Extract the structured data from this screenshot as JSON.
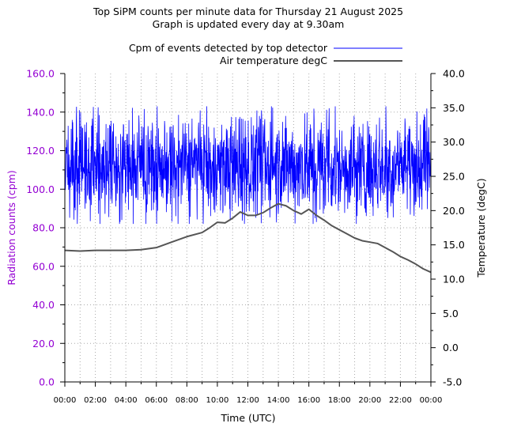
{
  "chart_data": {
    "type": "line",
    "title": "Top SiPM counts per minute data for Thursday 21 August 2025",
    "subtitle": "Graph is updated every day at 9.30am",
    "xlabel": "Time (UTC)",
    "ylabel_left": "Radiation counts (cpm)",
    "ylabel_right": "Temperature (degC)",
    "x_ticks": [
      "00:00",
      "02:00",
      "04:00",
      "06:00",
      "08:00",
      "10:00",
      "12:00",
      "14:00",
      "16:00",
      "18:00",
      "20:00",
      "22:00",
      "00:00"
    ],
    "x_range_hours": [
      0,
      24
    ],
    "y_left_range": [
      0,
      160
    ],
    "y_left_ticks": [
      "0.0",
      "20.0",
      "40.0",
      "60.0",
      "80.0",
      "100.0",
      "120.0",
      "140.0",
      "160.0"
    ],
    "y_right_range": [
      -5,
      40
    ],
    "y_right_ticks": [
      "-5.0",
      "0.0",
      "5.0",
      "10.0",
      "15.0",
      "20.0",
      "25.0",
      "30.0",
      "35.0",
      "40.0"
    ],
    "grid": true,
    "legend_position": "top-center",
    "series": [
      {
        "name": "Cpm of events detected by top detector",
        "axis": "left",
        "color": "#0000ff",
        "kind": "noisy-minute-counts",
        "mean": 112,
        "min": 82,
        "max": 143,
        "samples_per_day": 1440
      },
      {
        "name": "Air temperature degC",
        "axis": "right",
        "color": "#555555",
        "hours": [
          0,
          1,
          2,
          3,
          4,
          5,
          6,
          7,
          8,
          9,
          9.5,
          10,
          10.5,
          11,
          11.5,
          12,
          12.5,
          13,
          13.5,
          14,
          14.5,
          15,
          15.5,
          16,
          16.5,
          17,
          17.5,
          18,
          18.5,
          19,
          19.5,
          20,
          20.5,
          21,
          21.5,
          22,
          22.5,
          23,
          23.5,
          24
        ],
        "values": [
          14.2,
          14.1,
          14.2,
          14.2,
          14.2,
          14.3,
          14.6,
          15.4,
          16.2,
          16.8,
          17.5,
          18.3,
          18.2,
          18.9,
          19.8,
          19.3,
          19.3,
          19.7,
          20.4,
          21.0,
          20.7,
          20.0,
          19.5,
          20.2,
          19.3,
          18.6,
          17.8,
          17.2,
          16.6,
          16.0,
          15.6,
          15.4,
          15.2,
          14.6,
          14.0,
          13.3,
          12.8,
          12.2,
          11.5,
          11.0
        ]
      }
    ]
  },
  "colors": {
    "left_axis": "#9400d3",
    "series_cpm": "#0000ff",
    "series_temp": "#555555"
  }
}
